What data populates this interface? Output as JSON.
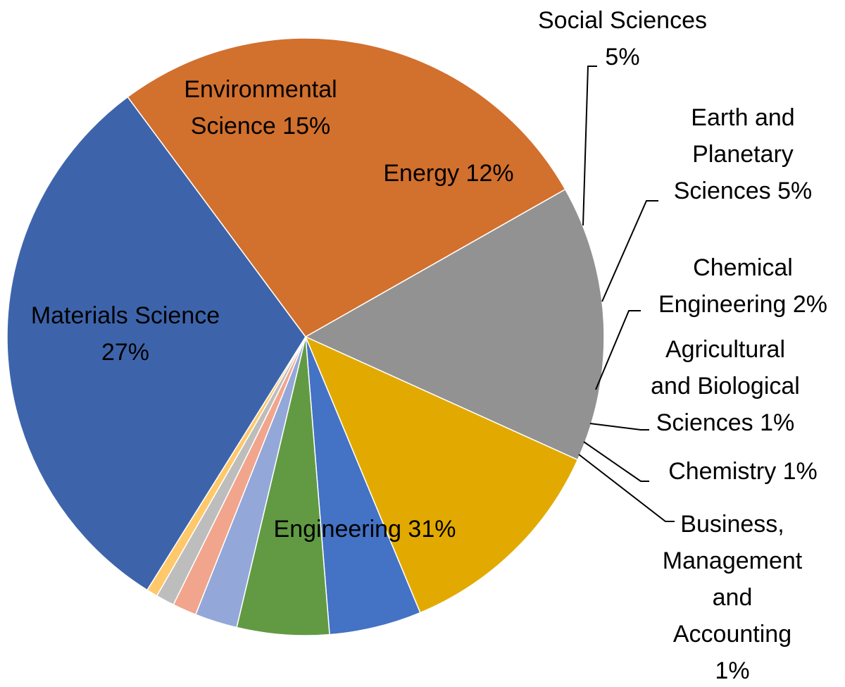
{
  "chart_data": {
    "type": "pie",
    "title": "",
    "slices": [
      {
        "label_lines": [
          "Engineering  31%"
        ],
        "value": 31,
        "color": "#3d64ab"
      },
      {
        "label_lines": [
          "Materials Science",
          "27%"
        ],
        "value": 27,
        "color": "#d2702e"
      },
      {
        "label_lines": [
          "Environmental",
          "Science  15%"
        ],
        "value": 15,
        "color": "#929292"
      },
      {
        "label_lines": [
          "Energy  12%"
        ],
        "value": 12,
        "color": "#e2aa00"
      },
      {
        "label_lines": [
          "Social Sciences",
          "5%"
        ],
        "value": 5,
        "color": "#4472c4"
      },
      {
        "label_lines": [
          "Earth and",
          "Planetary",
          "Sciences  5%"
        ],
        "value": 5,
        "color": "#629a43"
      },
      {
        "label_lines": [
          "Chemical",
          "Engineering 2%"
        ],
        "value": 2.3,
        "color": "#93a7d8"
      },
      {
        "label_lines": [
          "Agricultural",
          "and Biological",
          "Sciences  1%"
        ],
        "value": 1.3,
        "color": "#f1a58c"
      },
      {
        "label_lines": [
          "Chemistry  1%"
        ],
        "value": 1.0,
        "color": "#bdbdbd"
      },
      {
        "label_lines": [
          "Business,",
          "Management",
          "and",
          "Accounting",
          "1%"
        ],
        "value": 0.6,
        "color": "#ffc86a"
      }
    ]
  }
}
